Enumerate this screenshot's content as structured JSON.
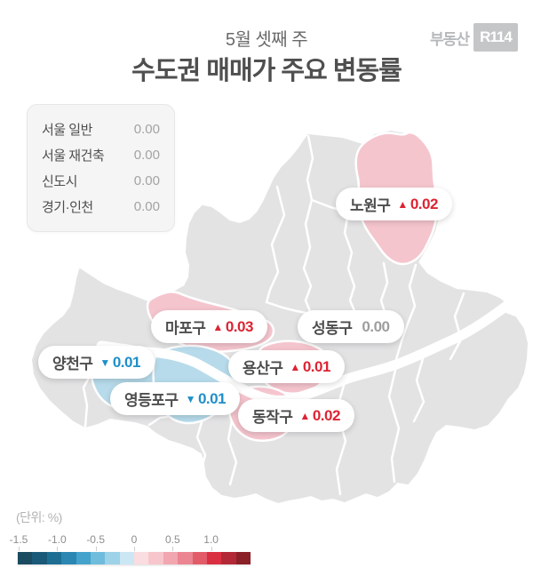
{
  "header": {
    "subtitle": "5월 셋째 주",
    "title": "수도권 매매가 주요 변동률",
    "logo_text": "부동산",
    "logo_badge": "R114"
  },
  "summary": {
    "rows": [
      {
        "label": "서울 일반",
        "value": "0.00"
      },
      {
        "label": "서울 재건축",
        "value": "0.00"
      },
      {
        "label": "신도시",
        "value": "0.00"
      },
      {
        "label": "경기·인천",
        "value": "0.00"
      }
    ]
  },
  "map_labels": [
    {
      "district": "노원구",
      "arrow": "▲",
      "value": "0.02",
      "direction": "up"
    },
    {
      "district": "마포구",
      "arrow": "▲",
      "value": "0.03",
      "direction": "up"
    },
    {
      "district": "성동구",
      "arrow": "",
      "value": "0.00",
      "direction": "neutral"
    },
    {
      "district": "양천구",
      "arrow": "▼",
      "value": "0.01",
      "direction": "down"
    },
    {
      "district": "용산구",
      "arrow": "▲",
      "value": "0.01",
      "direction": "up"
    },
    {
      "district": "영등포구",
      "arrow": "▼",
      "value": "0.01",
      "direction": "down"
    },
    {
      "district": "동작구",
      "arrow": "▲",
      "value": "0.02",
      "direction": "up"
    }
  ],
  "legend": {
    "unit_label": "(단위:  %)",
    "tick_labels": [
      "-1.5",
      "-1.0",
      "-0.5",
      "0",
      "0.5",
      "1.0"
    ],
    "bar_colors": [
      "#1a4b60",
      "#1a5a78",
      "#1e6e94",
      "#2b87b2",
      "#45a3cb",
      "#6fbcdc",
      "#9dd2e8",
      "#cbe7f3",
      "#fadde1",
      "#f7c6cc",
      "#f1a6b0",
      "#ea8591",
      "#e25b69",
      "#da2f41",
      "#b32837",
      "#8a2028"
    ]
  },
  "colors": {
    "rise_text": "#dd2433",
    "fall_text": "#1f8fc9",
    "neutral_text": "#9e9e9e",
    "district_rise": "#f5c5ce",
    "district_fall": "#b7dbeb",
    "district_base": "#e3e3e4"
  },
  "chart_data": {
    "type": "choropleth-map",
    "title": "수도권 매매가 주요 변동률",
    "subtitle": "5월 셋째 주",
    "unit": "%",
    "region": "Seoul metropolitan area (수도권)",
    "summary_values": [
      {
        "name": "서울 일반",
        "change": 0.0
      },
      {
        "name": "서울 재건축",
        "change": 0.0
      },
      {
        "name": "신도시",
        "change": 0.0
      },
      {
        "name": "경기·인천",
        "change": 0.0
      }
    ],
    "districts": [
      {
        "name": "노원구",
        "change": 0.02
      },
      {
        "name": "마포구",
        "change": 0.03
      },
      {
        "name": "성동구",
        "change": 0.0
      },
      {
        "name": "양천구",
        "change": -0.01
      },
      {
        "name": "용산구",
        "change": 0.01
      },
      {
        "name": "영등포구",
        "change": -0.01
      },
      {
        "name": "동작구",
        "change": 0.02
      }
    ],
    "color_scale": {
      "min": -1.5,
      "max": 1.5,
      "tick_step": 0.5,
      "diverging": true,
      "negative": "blue",
      "positive": "red"
    }
  }
}
